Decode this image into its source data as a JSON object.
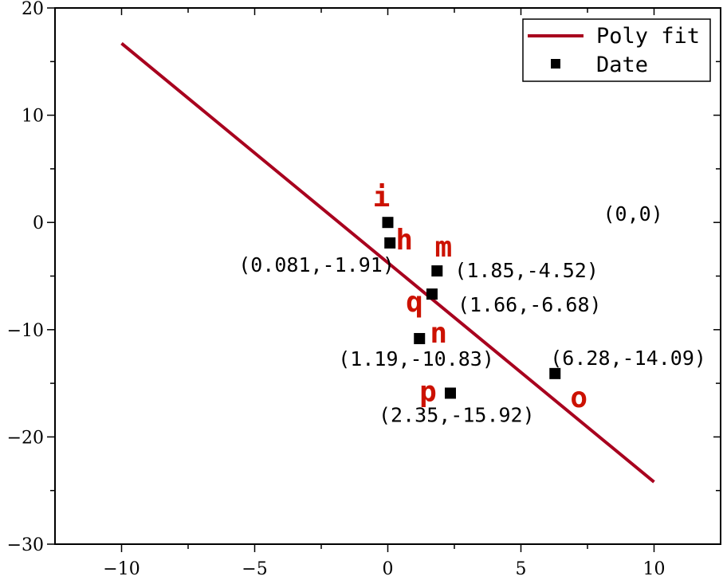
{
  "chart_data": {
    "type": "scatter",
    "xlim": [
      -12.5,
      12.5
    ],
    "ylim": [
      -30,
      20
    ],
    "x_ticks": [
      -10,
      -5,
      0,
      5,
      10
    ],
    "y_ticks": [
      -30,
      -20,
      -10,
      0,
      10,
      20
    ],
    "x_tick_labels": [
      "−10",
      "−5",
      "0",
      "5",
      "10"
    ],
    "y_tick_labels": [
      "−30",
      "−20",
      "−10",
      "0",
      "10",
      "20"
    ],
    "grid": false,
    "legend": {
      "position": "top-right",
      "entries": [
        {
          "name": "Poly fit",
          "type": "line",
          "color": "#a8001e"
        },
        {
          "name": "Date",
          "type": "marker",
          "color": "#000000"
        }
      ]
    },
    "series": [
      {
        "name": "Date",
        "type": "scatter",
        "color": "#000000",
        "points": [
          {
            "x": 0.0,
            "y": 0.0,
            "letter": "i"
          },
          {
            "x": 0.081,
            "y": -1.91,
            "letter": "h"
          },
          {
            "x": 1.85,
            "y": -4.52,
            "letter": "m"
          },
          {
            "x": 1.66,
            "y": -6.68,
            "letter": "q"
          },
          {
            "x": 1.19,
            "y": -10.83,
            "letter": "n"
          },
          {
            "x": 6.28,
            "y": -14.09,
            "letter": "o"
          },
          {
            "x": 2.35,
            "y": -15.92,
            "letter": "p"
          }
        ]
      },
      {
        "name": "Poly fit",
        "type": "line",
        "color": "#a8001e",
        "x": [
          -10,
          10
        ],
        "y": [
          16.7,
          -24.2
        ]
      }
    ],
    "annotations": [
      {
        "text": "(0,0)",
        "x": 0.0,
        "y": 0.0
      },
      {
        "text": "(0.081,-1.91)",
        "x": 0.081,
        "y": -1.91
      },
      {
        "text": "(1.85,-4.52)",
        "x": 1.85,
        "y": -4.52
      },
      {
        "text": "(1.66,-6.68)",
        "x": 1.66,
        "y": -6.68
      },
      {
        "text": "(1.19,-10.83)",
        "x": 1.19,
        "y": -10.83
      },
      {
        "text": "(6.28,-14.09)",
        "x": 6.28,
        "y": -14.09
      },
      {
        "text": "(2.35,-15.92)",
        "x": 2.35,
        "y": -15.92
      }
    ]
  }
}
